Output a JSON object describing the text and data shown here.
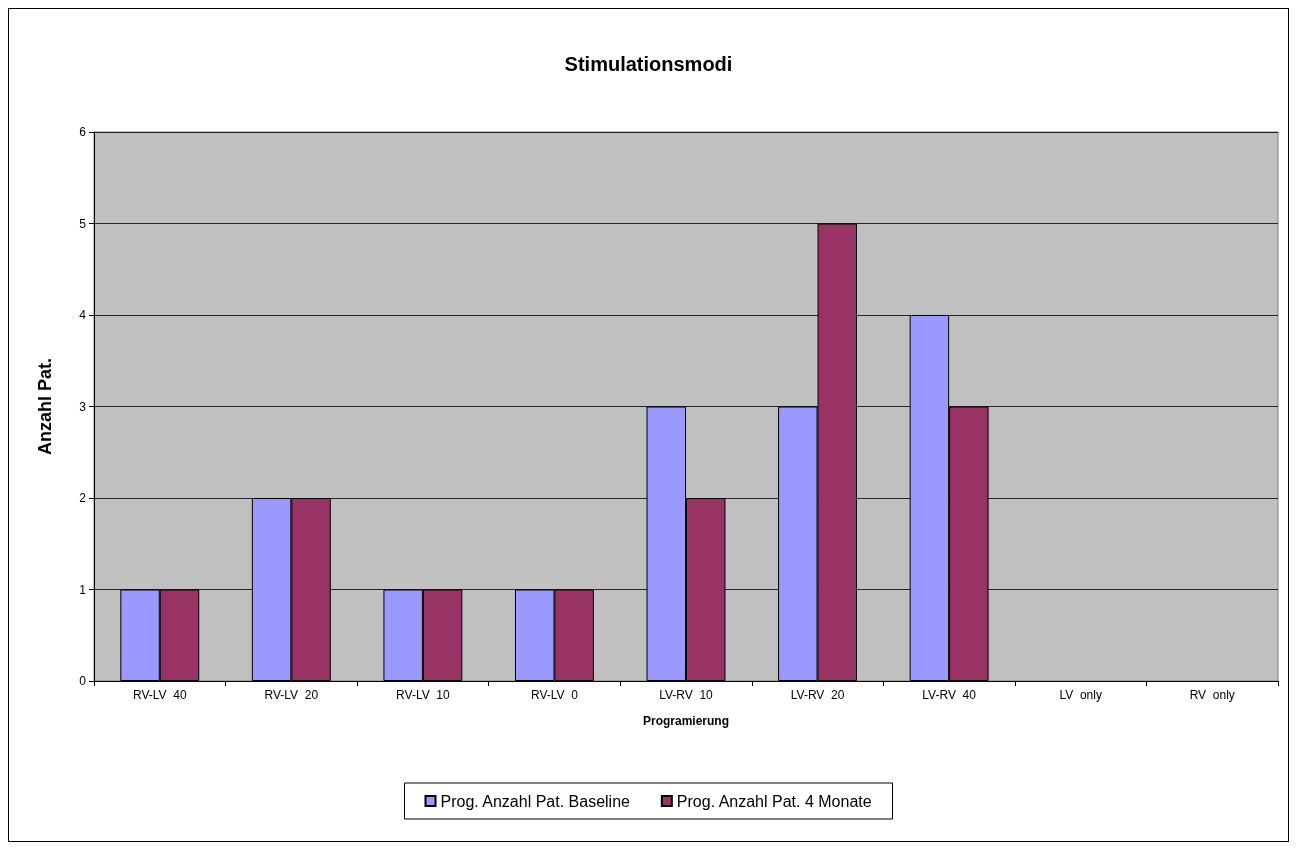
{
  "chart_data": {
    "type": "bar",
    "title": "Stimulationsmodi",
    "xlabel": "Programierung",
    "ylabel": "Anzahl Pat.",
    "categories": [
      "RV-LV  40",
      "RV-LV  20",
      "RV-LV  10",
      "RV-LV  0",
      "LV-RV  10",
      "LV-RV  20",
      "LV-RV  40",
      "LV  only",
      "RV  only"
    ],
    "series": [
      {
        "name": "Prog. Anzahl Pat. Baseline",
        "color": "#9999ff",
        "values": [
          1,
          2,
          1,
          1,
          3,
          3,
          4,
          0,
          0
        ]
      },
      {
        "name": "Prog. Anzahl Pat. 4 Monate",
        "color": "#993366",
        "values": [
          1,
          2,
          1,
          1,
          2,
          5,
          3,
          0,
          0
        ]
      }
    ],
    "ylim": [
      0,
      6
    ],
    "yticks": [
      0,
      1,
      2,
      3,
      4,
      5,
      6
    ],
    "grid": "y",
    "legend": "bottom"
  }
}
